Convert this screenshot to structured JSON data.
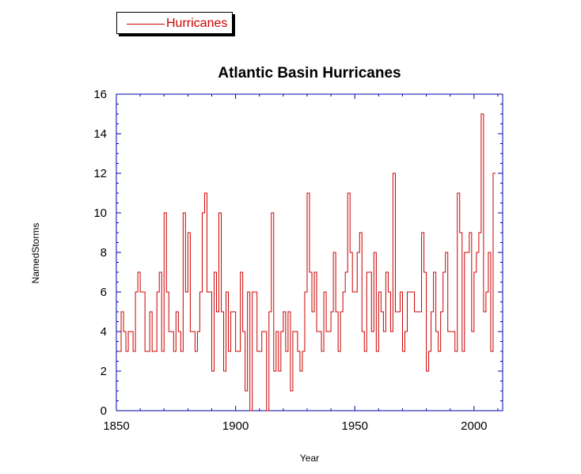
{
  "chart_data": {
    "type": "line",
    "step": true,
    "title": "Atlantic Basin Hurricanes",
    "xlabel": "Year",
    "ylabel": "NamedStorms",
    "xlim": [
      1850,
      2012
    ],
    "ylim": [
      0,
      16
    ],
    "xticks": [
      1850,
      1900,
      1950,
      2000
    ],
    "yticks": [
      0,
      2,
      4,
      6,
      8,
      10,
      12,
      14,
      16
    ],
    "legend": "top-left",
    "series": [
      {
        "name": "Hurricanes",
        "color": "#cc0000",
        "x_start": 1851,
        "values": [
          3,
          5,
          4,
          3,
          4,
          4,
          3,
          6,
          7,
          6,
          6,
          3,
          3,
          5,
          3,
          3,
          6,
          7,
          3,
          10,
          6,
          4,
          4,
          3,
          5,
          4,
          3,
          10,
          6,
          9,
          4,
          4,
          3,
          4,
          6,
          10,
          11,
          6,
          6,
          2,
          7,
          5,
          10,
          5,
          2,
          6,
          3,
          5,
          5,
          3,
          3,
          7,
          4,
          1,
          6,
          0,
          6,
          6,
          3,
          3,
          4,
          4,
          0,
          5,
          10,
          2,
          4,
          2,
          4,
          5,
          3,
          5,
          1,
          4,
          4,
          3,
          2,
          3,
          6,
          11,
          7,
          5,
          7,
          4,
          4,
          3,
          6,
          4,
          4,
          5,
          8,
          5,
          3,
          5,
          6,
          7,
          11,
          8,
          6,
          6,
          8,
          9,
          4,
          3,
          7,
          7,
          4,
          8,
          3,
          6,
          5,
          4,
          7,
          6,
          4,
          12,
          5,
          5,
          6,
          3,
          4,
          6,
          6,
          6,
          5,
          5,
          5,
          9,
          7,
          2,
          3,
          5,
          7,
          4,
          3,
          5,
          7,
          8,
          4,
          4,
          4,
          3,
          11,
          9,
          3,
          8,
          8,
          9,
          4,
          7,
          8,
          9,
          15,
          5,
          6,
          8,
          3,
          12
        ]
      }
    ]
  }
}
